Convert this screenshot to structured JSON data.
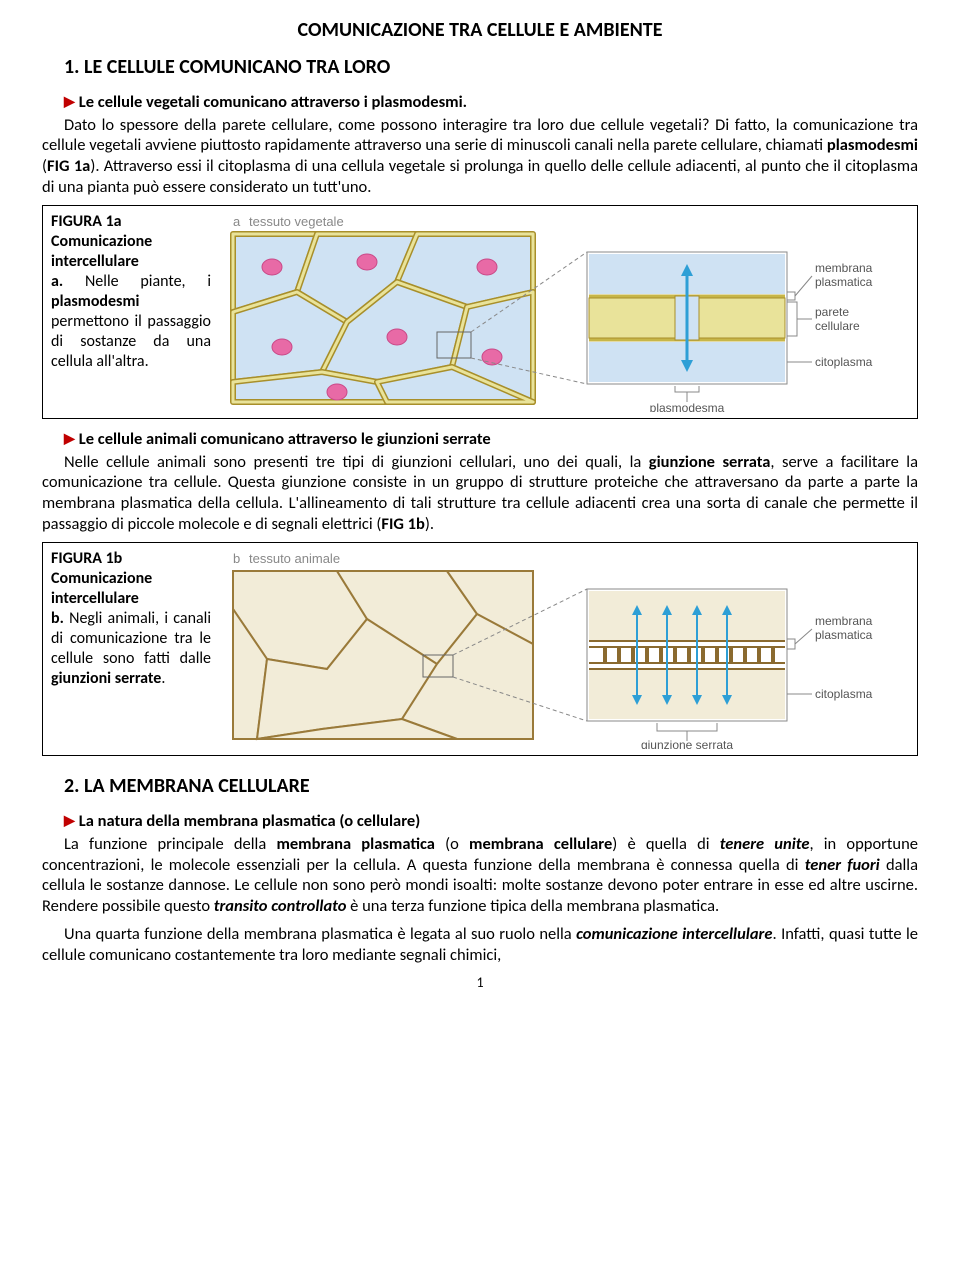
{
  "page": {
    "title": "COMUNICAZIONE TRA CELLULE E AMBIENTE",
    "page_number": "1"
  },
  "sec1": {
    "heading": "1. LE CELLULE COMUNICANO TRA LORO",
    "bullet1": "Le cellule vegetali comunicano attraverso i plasmodesmi.",
    "para1_a": "Dato lo spessore della parete cellulare, come possono interagire tra loro due cellule vegetali? Di fatto, la comunicazione tra cellule vegetali avviene piuttosto rapidamente attraverso una serie di minuscoli canali nella parete cellulare, chiamati ",
    "para1_b": "plasmodesmi",
    "para1_c": " (",
    "para1_d": "FIG 1a",
    "para1_e": "). Attraverso essi il citoplasma di una cellula vegetale si prolunga in quello delle cellule adiacenti, al punto che il citoplasma di una pianta può essere considerato un tutt'uno.",
    "bullet2": "Le cellule animali comunicano attraverso le giunzioni serrate",
    "para2_a": "Nelle cellule animali sono presenti tre tipi di giunzioni cellulari, uno dei quali, la ",
    "para2_b": "giunzione serrata",
    "para2_c": ", serve a facilitare la comunicazione tra cellule. Questa giunzione consiste in un gruppo di strutture proteiche che attraversano da parte a parte la membrana plasmatica della cellula. L'allineamento di tali strutture tra cellule adiacenti crea una sorta di canale che permette il passaggio di piccole molecole e di segnali elettrici (",
    "para2_d": "FIG 1b",
    "para2_e": ")."
  },
  "fig1a": {
    "title_line1": "FIGURA 1a",
    "title_line2": "Comunicazione intercellulare",
    "caption_a": "a.",
    "caption_b": " Nelle piante, i ",
    "caption_c": "plasmodesmi",
    "caption_d": " permettono il passaggio di sostanze da una cellula all'altra.",
    "labels": {
      "panel": "a",
      "tissue": "tessuto vegetale",
      "membrana": "membrana plasmatica",
      "parete": "parete cellulare",
      "citoplasma": "citoplasma",
      "plasmodesma": "plasmodesma"
    },
    "colors": {
      "border": "#7a7a7a",
      "detail_border": "#8a8a8a",
      "wall_fill": "#e9e39a",
      "wall_stroke": "#a88f2a",
      "membrane": "#c7b648",
      "cyto": "#cfe2f3",
      "nucleus": "#e86aa6",
      "arrow": "#2e9fd6",
      "label_text": "#555555",
      "leader": "#888888",
      "bg": "#f7f4ec"
    },
    "fontsize_label": 12
  },
  "fig1b": {
    "title_line1": "FIGURA 1b",
    "title_line2": "Comunicazione intercellulare",
    "caption_a": "b.",
    "caption_b": " Negli animali, i canali di comunicazione tra le cellule sono fatti dalle ",
    "caption_c": "giunzioni serrate",
    "caption_d": ".",
    "labels": {
      "panel": "b",
      "tissue": "tessuto animale",
      "membrana": "membrana plasmatica",
      "citoplasma": "citoplasma",
      "giunzione": "giunzione serrata"
    },
    "colors": {
      "border": "#7a7a7a",
      "detail_border": "#8a8a8a",
      "membrane_line": "#8a6a2f",
      "membrane_dash": "#a07a3a",
      "cyto": "#f2ecd8",
      "cell_border": "#9a7a3a",
      "arrow": "#2e9fd6",
      "dot": "#8a6a2f",
      "label_text": "#555555",
      "leader": "#888888",
      "bg": "#ffffff"
    },
    "fontsize_label": 12
  },
  "sec2": {
    "heading": "2. LA MEMBRANA CELLULARE",
    "bullet1": "La natura della membrana plasmatica (o cellulare)",
    "para1_a": "La funzione principale della ",
    "para1_b": "membrana plasmatica",
    "para1_c": " (o ",
    "para1_d": "membrana cellulare",
    "para1_e": ") è quella di ",
    "para1_f": "tenere unite",
    "para1_g": ", in opportune concentrazioni, le molecole essenziali per la cellula. A questa funzione della membrana è connessa quella di ",
    "para1_h": "tener fuori",
    "para1_i": " dalla cellula le sostanze dannose. Le cellule non sono però mondi isoalti: molte sostanze devono poter entrare in esse ed altre uscirne. Rendere possibile questo ",
    "para1_j": "transito controllato",
    "para1_k": " è una terza funzione tipica della membrana plasmatica.",
    "para2_a": "Una quarta funzione della membrana plasmatica è legata al suo ruolo nella ",
    "para2_b": "comunicazione intercellulare",
    "para2_c": ". Infatti, quasi tutte le cellule comunicano costantemente tra loro mediante segnali chimici,"
  }
}
